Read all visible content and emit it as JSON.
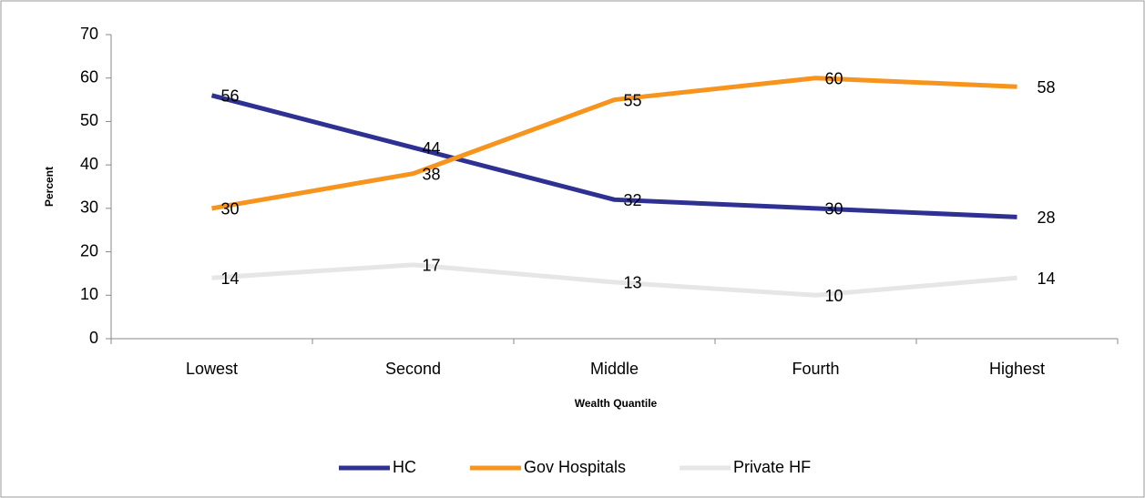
{
  "chart_data": {
    "type": "line",
    "y_label": "Percent",
    "x_label": "Wealth Quantile",
    "categories": [
      "Lowest",
      "Second",
      "Middle",
      "Fourth",
      "Highest"
    ],
    "series": [
      {
        "name": "HC",
        "color": "#2e3192",
        "values": [
          56,
          44,
          32,
          30,
          28
        ]
      },
      {
        "name": "Gov Hospitals",
        "color": "#f7941d",
        "values": [
          30,
          38,
          55,
          60,
          58
        ]
      },
      {
        "name": "Private HF",
        "color": "#e6e6e6",
        "values": [
          14,
          17,
          13,
          10,
          14
        ]
      }
    ],
    "ylim": [
      0,
      70
    ],
    "yticks": [
      0,
      10,
      20,
      30,
      40,
      50,
      60,
      70
    ],
    "grid": false,
    "legend": "bottom"
  }
}
